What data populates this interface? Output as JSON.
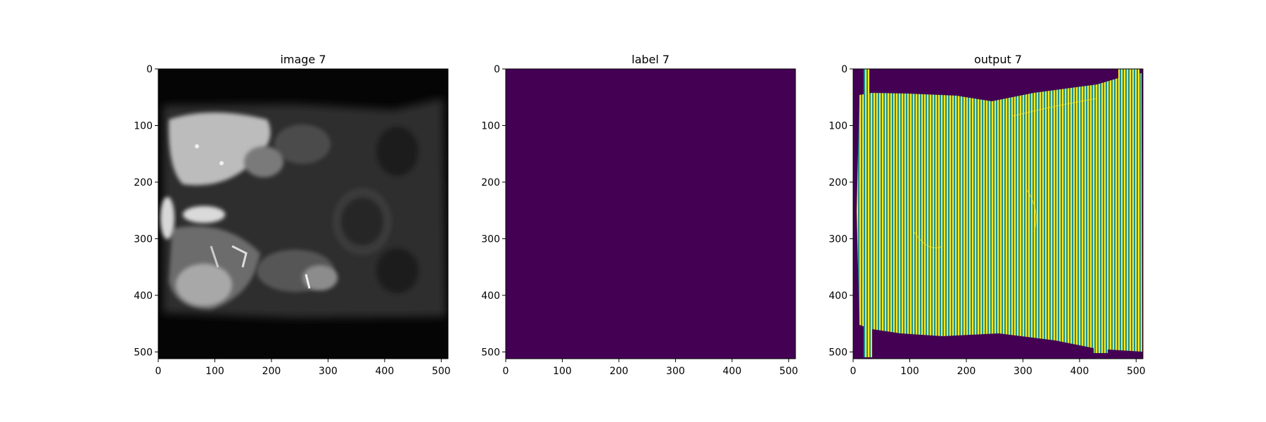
{
  "chart_data": [
    {
      "type": "heatmap",
      "title": "image 7",
      "content": "grayscale MRI slice",
      "colormap": "gray",
      "xlim": [
        0,
        512
      ],
      "ylim": [
        512,
        0
      ],
      "xticks": [
        0,
        100,
        200,
        300,
        400,
        500
      ],
      "yticks": [
        0,
        100,
        200,
        300,
        400,
        500
      ]
    },
    {
      "type": "heatmap",
      "title": "label 7",
      "content": "uniform value 0",
      "colormap": "viridis",
      "fill_color": "#440154",
      "xlim": [
        0,
        512
      ],
      "ylim": [
        512,
        0
      ],
      "xticks": [
        0,
        100,
        200,
        300,
        400,
        500
      ],
      "yticks": [
        0,
        100,
        200,
        300,
        400,
        500
      ]
    },
    {
      "type": "heatmap",
      "title": "output 7",
      "content": "binary mask with vertical stripe pattern",
      "colormap": "viridis",
      "background_color": "#440154",
      "stripe_colors": [
        "#21918c",
        "#fde725"
      ],
      "xlim": [
        0,
        512
      ],
      "ylim": [
        512,
        0
      ],
      "xticks": [
        0,
        100,
        200,
        300,
        400,
        500
      ],
      "yticks": [
        0,
        100,
        200,
        300,
        400,
        500
      ]
    }
  ]
}
